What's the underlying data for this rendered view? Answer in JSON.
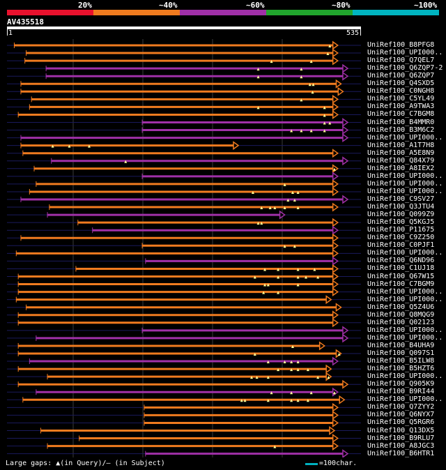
{
  "legend": {
    "labels": [
      "20%",
      "~40%",
      "~60%",
      "~80%",
      "~100%"
    ],
    "colors": [
      "#e8112d",
      "#f07b1f",
      "#a030a8",
      "#21a52d",
      "#00b4c0"
    ]
  },
  "query": {
    "name": "AV435518",
    "start": "1",
    "end": "535",
    "length": 535
  },
  "hit_colors": {
    "orange": "#f07b1f",
    "purple": "#a030a8",
    "navy": "#1a1a5c"
  },
  "hits": [
    {
      "name": "UniRef100_B8PFG8",
      "color": "orange",
      "s": 12,
      "e": 500,
      "tri": [
        488
      ]
    },
    {
      "name": "UniRef100_UPI000..",
      "color": "orange",
      "s": 30,
      "e": 500,
      "tri": [
        485
      ]
    },
    {
      "name": "UniRef100_Q7QEL7",
      "color": "orange",
      "s": 28,
      "e": 500,
      "tri": [
        400,
        460
      ]
    },
    {
      "name": "UniRef100_Q6ZQP7-2",
      "color": "purple",
      "s": 60,
      "e": 515,
      "tri": [
        380,
        445
      ]
    },
    {
      "name": "UniRef100_Q6ZQP7",
      "color": "purple",
      "s": 60,
      "e": 515,
      "tri": [
        380,
        445
      ]
    },
    {
      "name": "UniRef100_Q4SXD5",
      "color": "orange",
      "s": 22,
      "e": 505,
      "tri": [
        458,
        463
      ]
    },
    {
      "name": "UniRef100_C0NGH8",
      "color": "orange",
      "s": 22,
      "e": 508,
      "tri": [
        462
      ]
    },
    {
      "name": "UniRef100_C5YL49",
      "color": "orange",
      "s": 38,
      "e": 500,
      "tri": [
        445
      ]
    },
    {
      "name": "UniRef100_A9TWA3",
      "color": "orange",
      "s": 35,
      "e": 500,
      "tri": [
        380,
        480
      ]
    },
    {
      "name": "UniRef100_C7BGM8",
      "color": "orange",
      "s": 18,
      "e": 500,
      "tri": [
        480
      ]
    },
    {
      "name": "UniRef100_B4MMR0",
      "color": "purple",
      "s": 205,
      "e": 515,
      "tri": [
        480,
        488
      ]
    },
    {
      "name": "UniRef100_B3M6C2",
      "color": "purple",
      "s": 205,
      "e": 515,
      "tri": [
        430,
        445,
        460,
        480
      ]
    },
    {
      "name": "UniRef100_UPI000..",
      "color": "purple",
      "s": 22,
      "e": 515,
      "tri": []
    },
    {
      "name": "UniRef100_A1T7H8",
      "color": "orange",
      "s": 22,
      "e": 350,
      "tri": [
        70,
        95,
        125
      ]
    },
    {
      "name": "UniRef100_A5E8N9",
      "color": "orange",
      "s": 25,
      "e": 500,
      "tri": []
    },
    {
      "name": "UniRef100_Q84X79",
      "color": "purple",
      "s": 68,
      "e": 515,
      "tri": [
        180
      ]
    },
    {
      "name": "UniRef100_A8IEX2",
      "color": "orange",
      "s": 42,
      "e": 500,
      "tri": [
        495
      ]
    },
    {
      "name": "UniRef100_UPI000..",
      "color": "purple",
      "s": 205,
      "e": 500,
      "tri": []
    },
    {
      "name": "UniRef100_UPI000..",
      "color": "orange",
      "s": 45,
      "e": 500,
      "tri": [
        420
      ]
    },
    {
      "name": "UniRef100_UPI000..",
      "color": "orange",
      "s": 35,
      "e": 500,
      "tri": [
        372,
        432,
        440
      ]
    },
    {
      "name": "UniRef100_C9SV27",
      "color": "purple",
      "s": 22,
      "e": 515,
      "tri": [
        425,
        435
      ]
    },
    {
      "name": "UniRef100_Q3JTU4",
      "color": "orange",
      "s": 65,
      "e": 500,
      "tri": [
        385,
        398,
        405,
        420,
        440
      ]
    },
    {
      "name": "UniRef100_Q099Z9",
      "color": "purple",
      "s": 62,
      "e": 420,
      "tri": []
    },
    {
      "name": "UniRef100_Q5KGJ5",
      "color": "orange",
      "s": 108,
      "e": 500,
      "tri": [
        380,
        385
      ]
    },
    {
      "name": "UniRef100_P11675",
      "color": "purple",
      "s": 130,
      "e": 500,
      "tri": []
    },
    {
      "name": "UniRef100_C9Z250",
      "color": "orange",
      "s": 22,
      "e": 500,
      "tri": []
    },
    {
      "name": "UniRef100_C0PJF1",
      "color": "orange",
      "s": 205,
      "e": 500,
      "tri": [
        420,
        435
      ]
    },
    {
      "name": "UniRef100_UPI000..",
      "color": "orange",
      "s": 15,
      "e": 500,
      "tri": []
    },
    {
      "name": "UniRef100_Q6ND96",
      "color": "purple",
      "s": 210,
      "e": 500,
      "tri": []
    },
    {
      "name": "UniRef100_C1UJ18",
      "color": "orange",
      "s": 105,
      "e": 500,
      "tri": [
        390,
        410,
        440,
        465
      ]
    },
    {
      "name": "UniRef100_Q67W15",
      "color": "orange",
      "s": 18,
      "e": 500,
      "tri": [
        375,
        410,
        440,
        452,
        470
      ]
    },
    {
      "name": "UniRef100_C7BGM9",
      "color": "orange",
      "s": 18,
      "e": 500,
      "tri": [
        390,
        395,
        440
      ]
    },
    {
      "name": "UniRef100_UPI000..",
      "color": "orange",
      "s": 18,
      "e": 500,
      "tri": [
        388,
        410
      ]
    },
    {
      "name": "UniRef100_UPI000..",
      "color": "orange",
      "s": 15,
      "e": 490,
      "tri": []
    },
    {
      "name": "UniRef100_Q5Z4U6",
      "color": "orange",
      "s": 30,
      "e": 505,
      "tri": []
    },
    {
      "name": "UniRef100_Q8MQG9",
      "color": "orange",
      "s": 18,
      "e": 500,
      "tri": []
    },
    {
      "name": "UniRef100_Q02123",
      "color": "orange",
      "s": 18,
      "e": 500,
      "tri": []
    },
    {
      "name": "UniRef100_UPI000..",
      "color": "purple",
      "s": 205,
      "e": 515,
      "tri": []
    },
    {
      "name": "UniRef100_UPI000..",
      "color": "purple",
      "s": 45,
      "e": 515,
      "tri": []
    },
    {
      "name": "UniRef100_B4UHA9",
      "color": "orange",
      "s": 18,
      "e": 480,
      "tri": [
        432
      ]
    },
    {
      "name": "UniRef100_Q097S1",
      "color": "orange",
      "s": 18,
      "e": 505,
      "tri": [
        375,
        502
      ]
    },
    {
      "name": "UniRef100_B5ILW8",
      "color": "purple",
      "s": 35,
      "e": 500,
      "tri": [
        395,
        420,
        430,
        440
      ]
    },
    {
      "name": "UniRef100_B5HZT6",
      "color": "orange",
      "s": 18,
      "e": 490,
      "tri": [
        410,
        430,
        440,
        455
      ]
    },
    {
      "name": "UniRef100_UPI000..",
      "color": "orange",
      "s": 62,
      "e": 490,
      "tri": [
        370,
        378,
        395,
        470,
        486
      ]
    },
    {
      "name": "UniRef100_Q905K9",
      "color": "orange",
      "s": 18,
      "e": 515,
      "tri": []
    },
    {
      "name": "UniRef100_B9RI44",
      "color": "purple",
      "s": 45,
      "e": 500,
      "tri": [
        400,
        430,
        460,
        495
      ]
    },
    {
      "name": "UniRef100_UPI000..",
      "color": "orange",
      "s": 25,
      "e": 510,
      "tri": [
        355,
        360,
        395,
        430,
        440,
        455
      ]
    },
    {
      "name": "UniRef100_Q7ZYY2",
      "color": "orange",
      "s": 208,
      "e": 500,
      "tri": []
    },
    {
      "name": "UniRef100_Q6NYX7",
      "color": "orange",
      "s": 208,
      "e": 500,
      "tri": []
    },
    {
      "name": "UniRef100_Q5RGR6",
      "color": "orange",
      "s": 208,
      "e": 500,
      "tri": []
    },
    {
      "name": "UniRef100_Q13DX5",
      "color": "orange",
      "s": 52,
      "e": 495,
      "tri": []
    },
    {
      "name": "UniRef100_B9RLU7",
      "color": "orange",
      "s": 110,
      "e": 500,
      "tri": []
    },
    {
      "name": "UniRef100_A8JGC3",
      "color": "orange",
      "s": 62,
      "e": 500,
      "tri": [
        405
      ]
    },
    {
      "name": "UniRef100_B6HTR1",
      "color": "purple",
      "s": 210,
      "e": 515,
      "tri": []
    }
  ],
  "footer": {
    "left": "Large gaps: ▲(in Query)/— (in Subject)",
    "right": "=100char."
  }
}
